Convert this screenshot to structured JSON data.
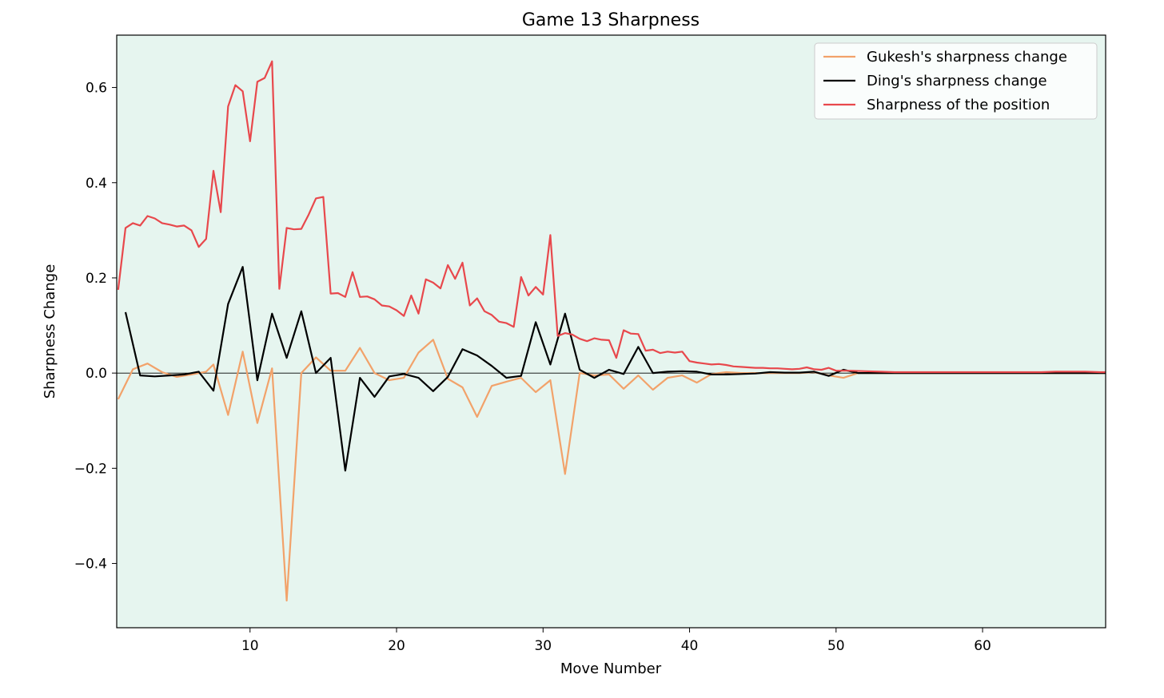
{
  "chart_data": {
    "type": "line",
    "title": "Game 13 Sharpness",
    "xlabel": "Move Number",
    "ylabel": "Sharpness Change",
    "xlim": [
      0.9,
      68.4
    ],
    "ylim": [
      -0.535,
      0.71
    ],
    "xticks": [
      10,
      20,
      30,
      40,
      50,
      60
    ],
    "yticks": [
      -0.4,
      -0.2,
      0.0,
      0.2,
      0.4,
      0.6
    ],
    "ytick_labels": [
      "−0.4",
      "−0.2",
      "0.0",
      "0.2",
      "0.4",
      "0.6"
    ],
    "zero_line": true,
    "grid": false,
    "legend_position": "top-right",
    "colors": {
      "plot_background": "#e6f5ef"
    },
    "series": [
      {
        "name": "Gukesh's sharpness change",
        "color": "#f2a26a",
        "points": [
          [
            1,
            -0.055
          ],
          [
            2,
            0.008
          ],
          [
            3,
            0.02
          ],
          [
            4,
            0.002
          ],
          [
            5,
            -0.008
          ],
          [
            6,
            -0.003
          ],
          [
            7,
            0.003
          ],
          [
            7.5,
            0.018
          ],
          [
            8.5,
            -0.088
          ],
          [
            9.5,
            0.045
          ],
          [
            10.5,
            -0.105
          ],
          [
            11.5,
            0.01
          ],
          [
            12.5,
            -0.478
          ],
          [
            13.5,
            0.0
          ],
          [
            14.5,
            0.033
          ],
          [
            15.5,
            0.005
          ],
          [
            16.5,
            0.005
          ],
          [
            17.5,
            0.053
          ],
          [
            18.5,
            0.0
          ],
          [
            19.5,
            -0.015
          ],
          [
            20.5,
            -0.01
          ],
          [
            21.5,
            0.043
          ],
          [
            22.5,
            0.07
          ],
          [
            23.5,
            -0.012
          ],
          [
            24.5,
            -0.03
          ],
          [
            25.5,
            -0.092
          ],
          [
            26.5,
            -0.027
          ],
          [
            27.5,
            -0.018
          ],
          [
            28.5,
            -0.01
          ],
          [
            29.5,
            -0.04
          ],
          [
            30.5,
            -0.015
          ],
          [
            31.5,
            -0.212
          ],
          [
            32.5,
            0.0
          ],
          [
            33.5,
            -0.005
          ],
          [
            34.5,
            -0.003
          ],
          [
            35.5,
            -0.033
          ],
          [
            36.5,
            -0.005
          ],
          [
            37.5,
            -0.035
          ],
          [
            38.5,
            -0.01
          ],
          [
            39.5,
            -0.005
          ],
          [
            40.5,
            -0.02
          ],
          [
            41.5,
            -0.002
          ],
          [
            42.5,
            0.002
          ],
          [
            43.5,
            0.0
          ],
          [
            44.5,
            0.0
          ],
          [
            45.5,
            0.0
          ],
          [
            46.5,
            0.0
          ],
          [
            47.5,
            0.0
          ],
          [
            48.5,
            0.002
          ],
          [
            49.5,
            -0.005
          ],
          [
            50.5,
            -0.01
          ],
          [
            51.5,
            0.0
          ],
          [
            52.5,
            0.0
          ],
          [
            55,
            0.0
          ],
          [
            60,
            0.0
          ],
          [
            65,
            0.0
          ],
          [
            68.4,
            0.0
          ]
        ]
      },
      {
        "name": "Ding's sharpness change",
        "color": "#000000",
        "points": [
          [
            1.5,
            0.128
          ],
          [
            2.5,
            -0.005
          ],
          [
            3.5,
            -0.007
          ],
          [
            4.5,
            -0.005
          ],
          [
            5.5,
            -0.003
          ],
          [
            6.5,
            0.003
          ],
          [
            7.5,
            -0.037
          ],
          [
            8.5,
            0.145
          ],
          [
            9.5,
            0.223
          ],
          [
            10.5,
            -0.015
          ],
          [
            11.5,
            0.125
          ],
          [
            12.5,
            0.032
          ],
          [
            13.5,
            0.13
          ],
          [
            14.5,
            0.0
          ],
          [
            15.5,
            0.032
          ],
          [
            16.5,
            -0.205
          ],
          [
            17.5,
            -0.01
          ],
          [
            18.5,
            -0.05
          ],
          [
            19.5,
            -0.007
          ],
          [
            20.5,
            -0.002
          ],
          [
            21.5,
            -0.01
          ],
          [
            22.5,
            -0.038
          ],
          [
            23.5,
            -0.008
          ],
          [
            24.5,
            0.05
          ],
          [
            25.5,
            0.037
          ],
          [
            26.5,
            0.015
          ],
          [
            27.5,
            -0.01
          ],
          [
            28.5,
            -0.006
          ],
          [
            29.5,
            0.107
          ],
          [
            30.5,
            0.018
          ],
          [
            31.5,
            0.125
          ],
          [
            32.5,
            0.007
          ],
          [
            33.5,
            -0.01
          ],
          [
            34.5,
            0.007
          ],
          [
            35.5,
            -0.002
          ],
          [
            36.5,
            0.055
          ],
          [
            37.5,
            0.0
          ],
          [
            38.5,
            0.003
          ],
          [
            39.5,
            0.004
          ],
          [
            40.5,
            0.003
          ],
          [
            41.5,
            -0.003
          ],
          [
            42.5,
            -0.003
          ],
          [
            43.5,
            -0.002
          ],
          [
            44.5,
            -0.001
          ],
          [
            45.5,
            0.002
          ],
          [
            46.5,
            0.001
          ],
          [
            47.5,
            0.001
          ],
          [
            48.5,
            0.003
          ],
          [
            49.5,
            -0.006
          ],
          [
            50.5,
            0.007
          ],
          [
            51.5,
            0.0
          ],
          [
            52.5,
            0.0
          ],
          [
            55,
            0.0
          ],
          [
            60,
            0.0
          ],
          [
            65,
            0.0
          ],
          [
            68.4,
            0.0
          ]
        ]
      },
      {
        "name": "Sharpness of the position",
        "color": "#e8484c",
        "points": [
          [
            1,
            0.175
          ],
          [
            1.5,
            0.305
          ],
          [
            2,
            0.315
          ],
          [
            2.5,
            0.31
          ],
          [
            3,
            0.33
          ],
          [
            3.5,
            0.325
          ],
          [
            4,
            0.315
          ],
          [
            4.5,
            0.312
          ],
          [
            5,
            0.308
          ],
          [
            5.5,
            0.31
          ],
          [
            6,
            0.3
          ],
          [
            6.5,
            0.265
          ],
          [
            7,
            0.282
          ],
          [
            7.5,
            0.425
          ],
          [
            8,
            0.338
          ],
          [
            8.5,
            0.56
          ],
          [
            9,
            0.605
          ],
          [
            9.5,
            0.592
          ],
          [
            10,
            0.487
          ],
          [
            10.5,
            0.612
          ],
          [
            11,
            0.62
          ],
          [
            11.5,
            0.655
          ],
          [
            12,
            0.177
          ],
          [
            12.5,
            0.305
          ],
          [
            13,
            0.302
          ],
          [
            13.5,
            0.303
          ],
          [
            14,
            0.333
          ],
          [
            14.5,
            0.367
          ],
          [
            15,
            0.37
          ],
          [
            15.5,
            0.167
          ],
          [
            16,
            0.168
          ],
          [
            16.5,
            0.16
          ],
          [
            17,
            0.212
          ],
          [
            17.5,
            0.16
          ],
          [
            18,
            0.161
          ],
          [
            18.5,
            0.155
          ],
          [
            19,
            0.142
          ],
          [
            19.5,
            0.14
          ],
          [
            20,
            0.132
          ],
          [
            20.5,
            0.12
          ],
          [
            21,
            0.163
          ],
          [
            21.5,
            0.125
          ],
          [
            22,
            0.197
          ],
          [
            22.5,
            0.19
          ],
          [
            23,
            0.178
          ],
          [
            23.5,
            0.227
          ],
          [
            24,
            0.198
          ],
          [
            24.5,
            0.232
          ],
          [
            25,
            0.142
          ],
          [
            25.5,
            0.157
          ],
          [
            26,
            0.13
          ],
          [
            26.5,
            0.122
          ],
          [
            27,
            0.108
          ],
          [
            27.5,
            0.105
          ],
          [
            28,
            0.097
          ],
          [
            28.5,
            0.202
          ],
          [
            29,
            0.163
          ],
          [
            29.5,
            0.181
          ],
          [
            30,
            0.165
          ],
          [
            30.5,
            0.29
          ],
          [
            31,
            0.078
          ],
          [
            31.5,
            0.084
          ],
          [
            32,
            0.081
          ],
          [
            32.5,
            0.072
          ],
          [
            33,
            0.067
          ],
          [
            33.5,
            0.073
          ],
          [
            34,
            0.07
          ],
          [
            34.5,
            0.069
          ],
          [
            35,
            0.032
          ],
          [
            35.5,
            0.09
          ],
          [
            36,
            0.083
          ],
          [
            36.5,
            0.082
          ],
          [
            37,
            0.047
          ],
          [
            37.5,
            0.049
          ],
          [
            38,
            0.042
          ],
          [
            38.5,
            0.045
          ],
          [
            39,
            0.043
          ],
          [
            39.5,
            0.045
          ],
          [
            40,
            0.025
          ],
          [
            40.5,
            0.022
          ],
          [
            41,
            0.02
          ],
          [
            41.5,
            0.018
          ],
          [
            42,
            0.019
          ],
          [
            42.5,
            0.017
          ],
          [
            43,
            0.014
          ],
          [
            43.5,
            0.013
          ],
          [
            44,
            0.012
          ],
          [
            44.5,
            0.011
          ],
          [
            45,
            0.011
          ],
          [
            45.5,
            0.01
          ],
          [
            46,
            0.01
          ],
          [
            46.5,
            0.009
          ],
          [
            47,
            0.008
          ],
          [
            47.5,
            0.009
          ],
          [
            48,
            0.012
          ],
          [
            48.5,
            0.008
          ],
          [
            49,
            0.007
          ],
          [
            49.5,
            0.011
          ],
          [
            50,
            0.005
          ],
          [
            51,
            0.005
          ],
          [
            52,
            0.004
          ],
          [
            53,
            0.003
          ],
          [
            54,
            0.002
          ],
          [
            55,
            0.002
          ],
          [
            56,
            0.002
          ],
          [
            57,
            0.002
          ],
          [
            58,
            0.002
          ],
          [
            59,
            0.002
          ],
          [
            60,
            0.002
          ],
          [
            61,
            0.002
          ],
          [
            62,
            0.002
          ],
          [
            63,
            0.002
          ],
          [
            64,
            0.002
          ],
          [
            65,
            0.003
          ],
          [
            66,
            0.003
          ],
          [
            67,
            0.003
          ],
          [
            68,
            0.002
          ],
          [
            68.4,
            0.002
          ]
        ]
      }
    ]
  }
}
